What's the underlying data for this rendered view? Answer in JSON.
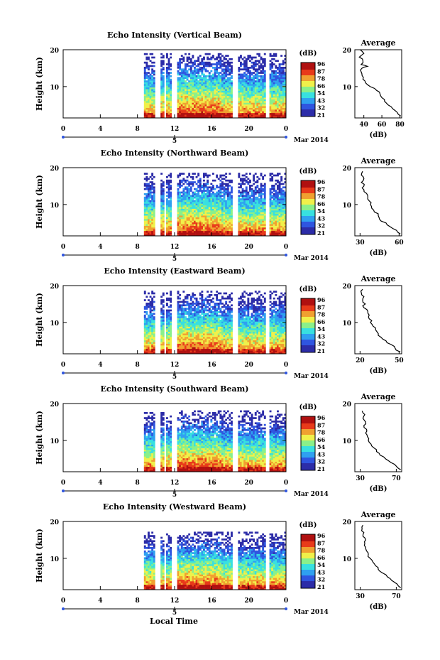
{
  "figure": {
    "global_xlabel": "Local Time",
    "date_label": "Mar 2014",
    "day_label": "5",
    "colorbar_unit": "(dB)",
    "colorbar_ticks": [
      "96",
      "87",
      "78",
      "66",
      "54",
      "43",
      "32",
      "21"
    ],
    "colors": {
      "cmap": [
        "#2c2ca8",
        "#2f55e0",
        "#2fa0f0",
        "#38e0e0",
        "#8af08a",
        "#f0f04a",
        "#f0a030",
        "#e83a1a",
        "#b01010"
      ],
      "frame": "#000000",
      "background": "#ffffff"
    }
  },
  "chart_data": [
    {
      "type": "heatmap",
      "title": "Echo Intensity (Vertical Beam)",
      "xlabel": "",
      "ylabel": "Height (km)",
      "xticks": [
        "0",
        "4",
        "8",
        "12",
        "16",
        "20",
        "0"
      ],
      "yticks": [
        "20",
        "10"
      ],
      "xlim": [
        0,
        24
      ],
      "ylim": [
        1.5,
        20
      ],
      "data_start_hour": 8.7,
      "gaps_hours": [
        [
          9.7,
          10.3
        ],
        [
          10.8,
          11.0
        ],
        [
          11.6,
          12.2
        ],
        [
          18.1,
          18.8
        ],
        [
          21.8,
          22.1
        ]
      ],
      "side_profile": {
        "title": "Average",
        "xlabel": "(dB)",
        "xticks": [
          "40",
          "60",
          "80"
        ],
        "xlim": [
          30,
          82
        ],
        "ylim": [
          1.5,
          20
        ],
        "yticks": [
          "20",
          "10"
        ],
        "heights_km": [
          2,
          3,
          4,
          5,
          6,
          7,
          8,
          9,
          10,
          11,
          12,
          13,
          14,
          15,
          15.5,
          16,
          17,
          18,
          19,
          20
        ],
        "values_db": [
          81,
          77,
          72,
          67,
          63,
          60,
          58,
          54,
          47,
          42,
          39,
          38,
          37,
          38,
          44,
          37,
          39,
          35,
          40,
          36
        ]
      }
    },
    {
      "type": "heatmap",
      "title": "Echo Intensity (Northward Beam)",
      "xlabel": "",
      "ylabel": "Height (km)",
      "xticks": [
        "0",
        "4",
        "8",
        "12",
        "16",
        "20",
        "0"
      ],
      "yticks": [
        "20",
        "10"
      ],
      "xlim": [
        0,
        24
      ],
      "ylim": [
        1.5,
        20
      ],
      "data_start_hour": 8.7,
      "gaps_hours": [
        [
          9.7,
          10.3
        ],
        [
          10.8,
          11.0
        ],
        [
          11.6,
          12.2
        ],
        [
          18.1,
          18.8
        ],
        [
          21.8,
          22.1
        ]
      ],
      "side_profile": {
        "title": "Average",
        "xlabel": "(dB)",
        "xticks": [
          "30",
          "60"
        ],
        "xlim": [
          26,
          62
        ],
        "ylim": [
          1.5,
          20
        ],
        "yticks": [
          "20",
          "10"
        ],
        "heights_km": [
          2,
          3,
          4,
          5,
          6,
          7,
          8,
          9,
          10,
          11,
          12,
          13,
          14,
          15,
          16,
          17,
          18,
          19
        ],
        "values_db": [
          61,
          58,
          53,
          50,
          45,
          44,
          41,
          39,
          38,
          37,
          36,
          35,
          33,
          33,
          31,
          33,
          31,
          32
        ]
      }
    },
    {
      "type": "heatmap",
      "title": "Echo Intensity (Eastward Beam)",
      "xlabel": "",
      "ylabel": "Height (km)",
      "xticks": [
        "0",
        "4",
        "8",
        "12",
        "16",
        "20",
        "0"
      ],
      "yticks": [
        "20",
        "10"
      ],
      "xlim": [
        0,
        24
      ],
      "ylim": [
        1.5,
        20
      ],
      "data_start_hour": 8.7,
      "gaps_hours": [
        [
          9.7,
          10.3
        ],
        [
          10.8,
          11.0
        ],
        [
          11.6,
          12.2
        ],
        [
          18.1,
          18.8
        ],
        [
          21.8,
          22.1
        ]
      ],
      "side_profile": {
        "title": "Average",
        "xlabel": "(dB)",
        "xticks": [
          "20",
          "50"
        ],
        "xlim": [
          16,
          52
        ],
        "ylim": [
          1.5,
          20
        ],
        "yticks": [
          "20",
          "10"
        ],
        "heights_km": [
          2,
          3,
          4,
          5,
          6,
          7,
          8,
          9,
          10,
          11,
          12,
          13,
          14,
          15,
          16,
          17,
          18,
          19
        ],
        "values_db": [
          51,
          47,
          44,
          40,
          36,
          34,
          32,
          30,
          28,
          27,
          27,
          26,
          23,
          24,
          22,
          23,
          21,
          22
        ]
      }
    },
    {
      "type": "heatmap",
      "title": "Echo Intensity (Southward Beam)",
      "xlabel": "",
      "ylabel": "Height (km)",
      "xticks": [
        "0",
        "4",
        "8",
        "12",
        "16",
        "20",
        "0"
      ],
      "yticks": [
        "20",
        "10"
      ],
      "xlim": [
        0,
        24
      ],
      "ylim": [
        1.5,
        20
      ],
      "data_start_hour": 8.7,
      "gaps_hours": [
        [
          9.7,
          10.3
        ],
        [
          10.8,
          11.0
        ],
        [
          11.6,
          12.2
        ],
        [
          18.1,
          18.8
        ],
        [
          21.8,
          22.1
        ]
      ],
      "side_profile": {
        "title": "Average",
        "xlabel": "(dB)",
        "xticks": [
          "30",
          "70"
        ],
        "xlim": [
          24,
          76
        ],
        "ylim": [
          1.5,
          20
        ],
        "yticks": [
          "20",
          "10"
        ],
        "heights_km": [
          2,
          3,
          4,
          5,
          6,
          7,
          8,
          9,
          10,
          11,
          12,
          13,
          14,
          15,
          16,
          17,
          18
        ],
        "values_db": [
          75,
          70,
          64,
          58,
          52,
          48,
          45,
          42,
          39,
          38,
          36,
          37,
          34,
          36,
          33,
          35,
          32
        ]
      }
    },
    {
      "type": "heatmap",
      "title": "Echo Intensity (Westward Beam)",
      "xlabel": "",
      "ylabel": "Height (km)",
      "xticks": [
        "0",
        "4",
        "8",
        "12",
        "16",
        "20",
        "0"
      ],
      "yticks": [
        "20",
        "10"
      ],
      "xlim": [
        0,
        24
      ],
      "ylim": [
        1.5,
        20
      ],
      "data_start_hour": 8.7,
      "gaps_hours": [
        [
          9.7,
          10.3
        ],
        [
          10.8,
          11.0
        ],
        [
          11.6,
          12.2
        ],
        [
          18.1,
          18.8
        ],
        [
          21.8,
          22.1
        ]
      ],
      "side_profile": {
        "title": "Average",
        "xlabel": "(dB)",
        "xticks": [
          "30",
          "70"
        ],
        "xlim": [
          24,
          76
        ],
        "ylim": [
          1.5,
          20
        ],
        "yticks": [
          "20",
          "10"
        ],
        "heights_km": [
          2,
          3,
          4,
          5,
          6,
          7,
          8,
          9,
          10,
          11,
          12,
          13,
          14,
          15,
          16,
          17,
          18,
          19
        ],
        "values_db": [
          75,
          71,
          65,
          60,
          55,
          50,
          47,
          44,
          41,
          39,
          37,
          36,
          35,
          36,
          33,
          34,
          32,
          33
        ]
      }
    }
  ]
}
